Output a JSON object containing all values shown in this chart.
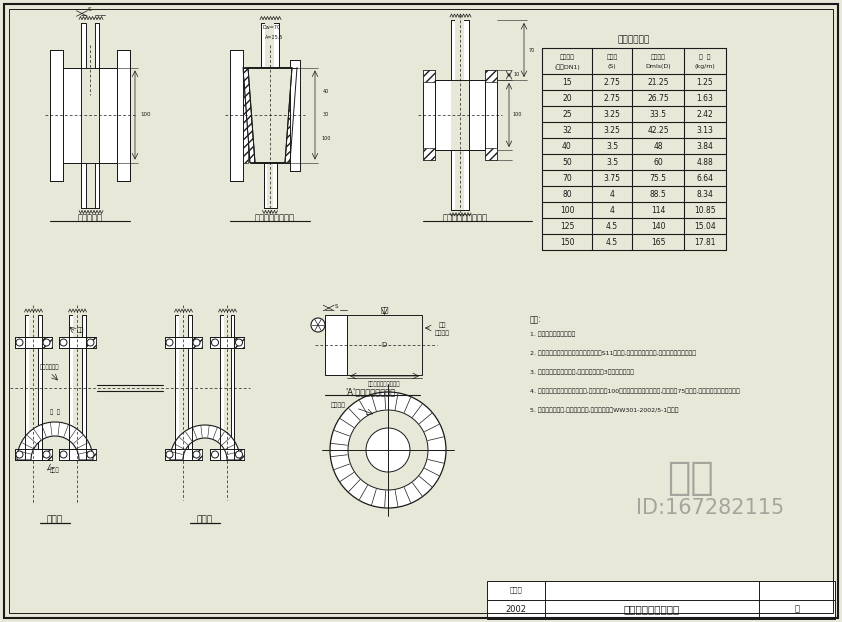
{
  "bg_color": "#e8e8d8",
  "line_color": "#1a1a1a",
  "white": "#ffffff",
  "title": "钢管与铸铁管连接图",
  "table_title": "焊接钢管规格",
  "table_headers_line1": [
    "公称通径",
    "管壁厚",
    "近似外径",
    "重  量"
  ],
  "table_headers_line2": [
    "(阀述DN1)",
    "(S)",
    "Dmls(D)",
    "(kg/m)"
  ],
  "table_data": [
    [
      "15",
      "2.75",
      "21.25",
      "1.25"
    ],
    [
      "20",
      "2.75",
      "26.75",
      "1.63"
    ],
    [
      "25",
      "3.25",
      "33.5",
      "2.42"
    ],
    [
      "32",
      "3.25",
      "42.25",
      "3.13"
    ],
    [
      "40",
      "3.5",
      "48",
      "3.84"
    ],
    [
      "50",
      "3.5",
      "60",
      "4.88"
    ],
    [
      "70",
      "3.75",
      "75.5",
      "6.64"
    ],
    [
      "80",
      "4",
      "88.5",
      "8.34"
    ],
    [
      "100",
      "4",
      "114",
      "10.85"
    ],
    [
      "125",
      "4.5",
      "140",
      "15.04"
    ],
    [
      "150",
      "4.5",
      "165",
      "17.81"
    ]
  ],
  "label1": "同径管接头",
  "label2": "变更管径套管接头",
  "label3": "变更管径异形平接头",
  "label4": "同径管",
  "label5": "异径管",
  "label6": "'A'钢管管口加工大样",
  "label_gangguan": "钢管",
  "label_zhuti": "铸铁",
  "label_zhutiguankou": "插钢管口",
  "label_flange": "带螺钢压兰盘",
  "label_dianquan": "垫  圈",
  "label_zhujie": "铸铁管",
  "label_zhujiekoutu": "铸铁管口",
  "label_dim": "应不大于铸铁管距口径",
  "notes_title": "附注:",
  "notes": [
    "1. 本图尺寸均按毫米计。",
    "2. 与铸铁管连接的钢管兰盘尺寸详见图纸S11平面图,并管兰兰盘规尺寸,禁不同管径兰盘互用。",
    "3. 钢管与铸铁管靠拢连接,管管口互加所门3盘需要大钢掣。",
    "4. 钢管与铸铁管异径管靠拢连接,变更管径在100以上者采用铸铁异径管件,变更管径75以下者,采用套管兼异形平接头。",
    "5. 来源口采料尺寸,与铸铁管靠通,接口钢同号见WW301-2002/5-1号图。"
  ],
  "watermark": "知末",
  "id_text": "ID:167282115",
  "date_label": "建期新",
  "date_val": "2002",
  "sheet_title": "钢管与铸铁管连接图",
  "sheet_no": "页"
}
